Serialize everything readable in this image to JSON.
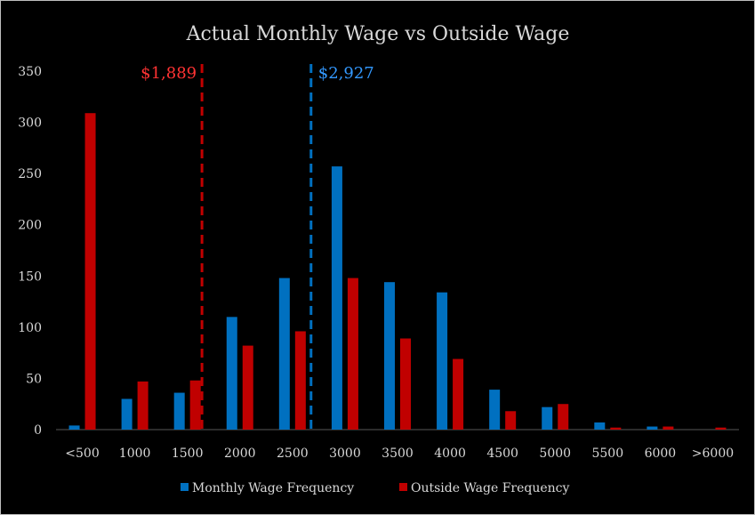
{
  "chart_data": {
    "type": "bar",
    "title": "Actual Monthly Wage vs Outside Wage",
    "xlabel": "",
    "ylabel": "",
    "ylim": [
      0,
      350
    ],
    "yticks": [
      0,
      50,
      100,
      150,
      200,
      250,
      300,
      350
    ],
    "grid": false,
    "legend_position": "bottom",
    "categories": [
      "<500",
      "1000",
      "1500",
      "2000",
      "2500",
      "3000",
      "3500",
      "4000",
      "4500",
      "5000",
      "5500",
      "6000",
      ">6000"
    ],
    "series": [
      {
        "name": "Monthly Wage Frequency",
        "color": "#0070c0",
        "values": [
          4,
          30,
          36,
          110,
          148,
          257,
          144,
          134,
          39,
          22,
          7,
          3,
          0
        ]
      },
      {
        "name": "Outside Wage Frequency",
        "color": "#c00000",
        "values": [
          309,
          47,
          48,
          82,
          96,
          148,
          89,
          69,
          18,
          25,
          2,
          3,
          2
        ]
      }
    ],
    "annotations": [
      {
        "label": "$1,889",
        "value": 1889,
        "color": "#ff3333",
        "line_color": "#c00000",
        "series": "Outside Wage Frequency"
      },
      {
        "label": "$2,927",
        "value": 2927,
        "color": "#3399ff",
        "line_color": "#0070c0",
        "series": "Monthly Wage Frequency"
      }
    ]
  }
}
